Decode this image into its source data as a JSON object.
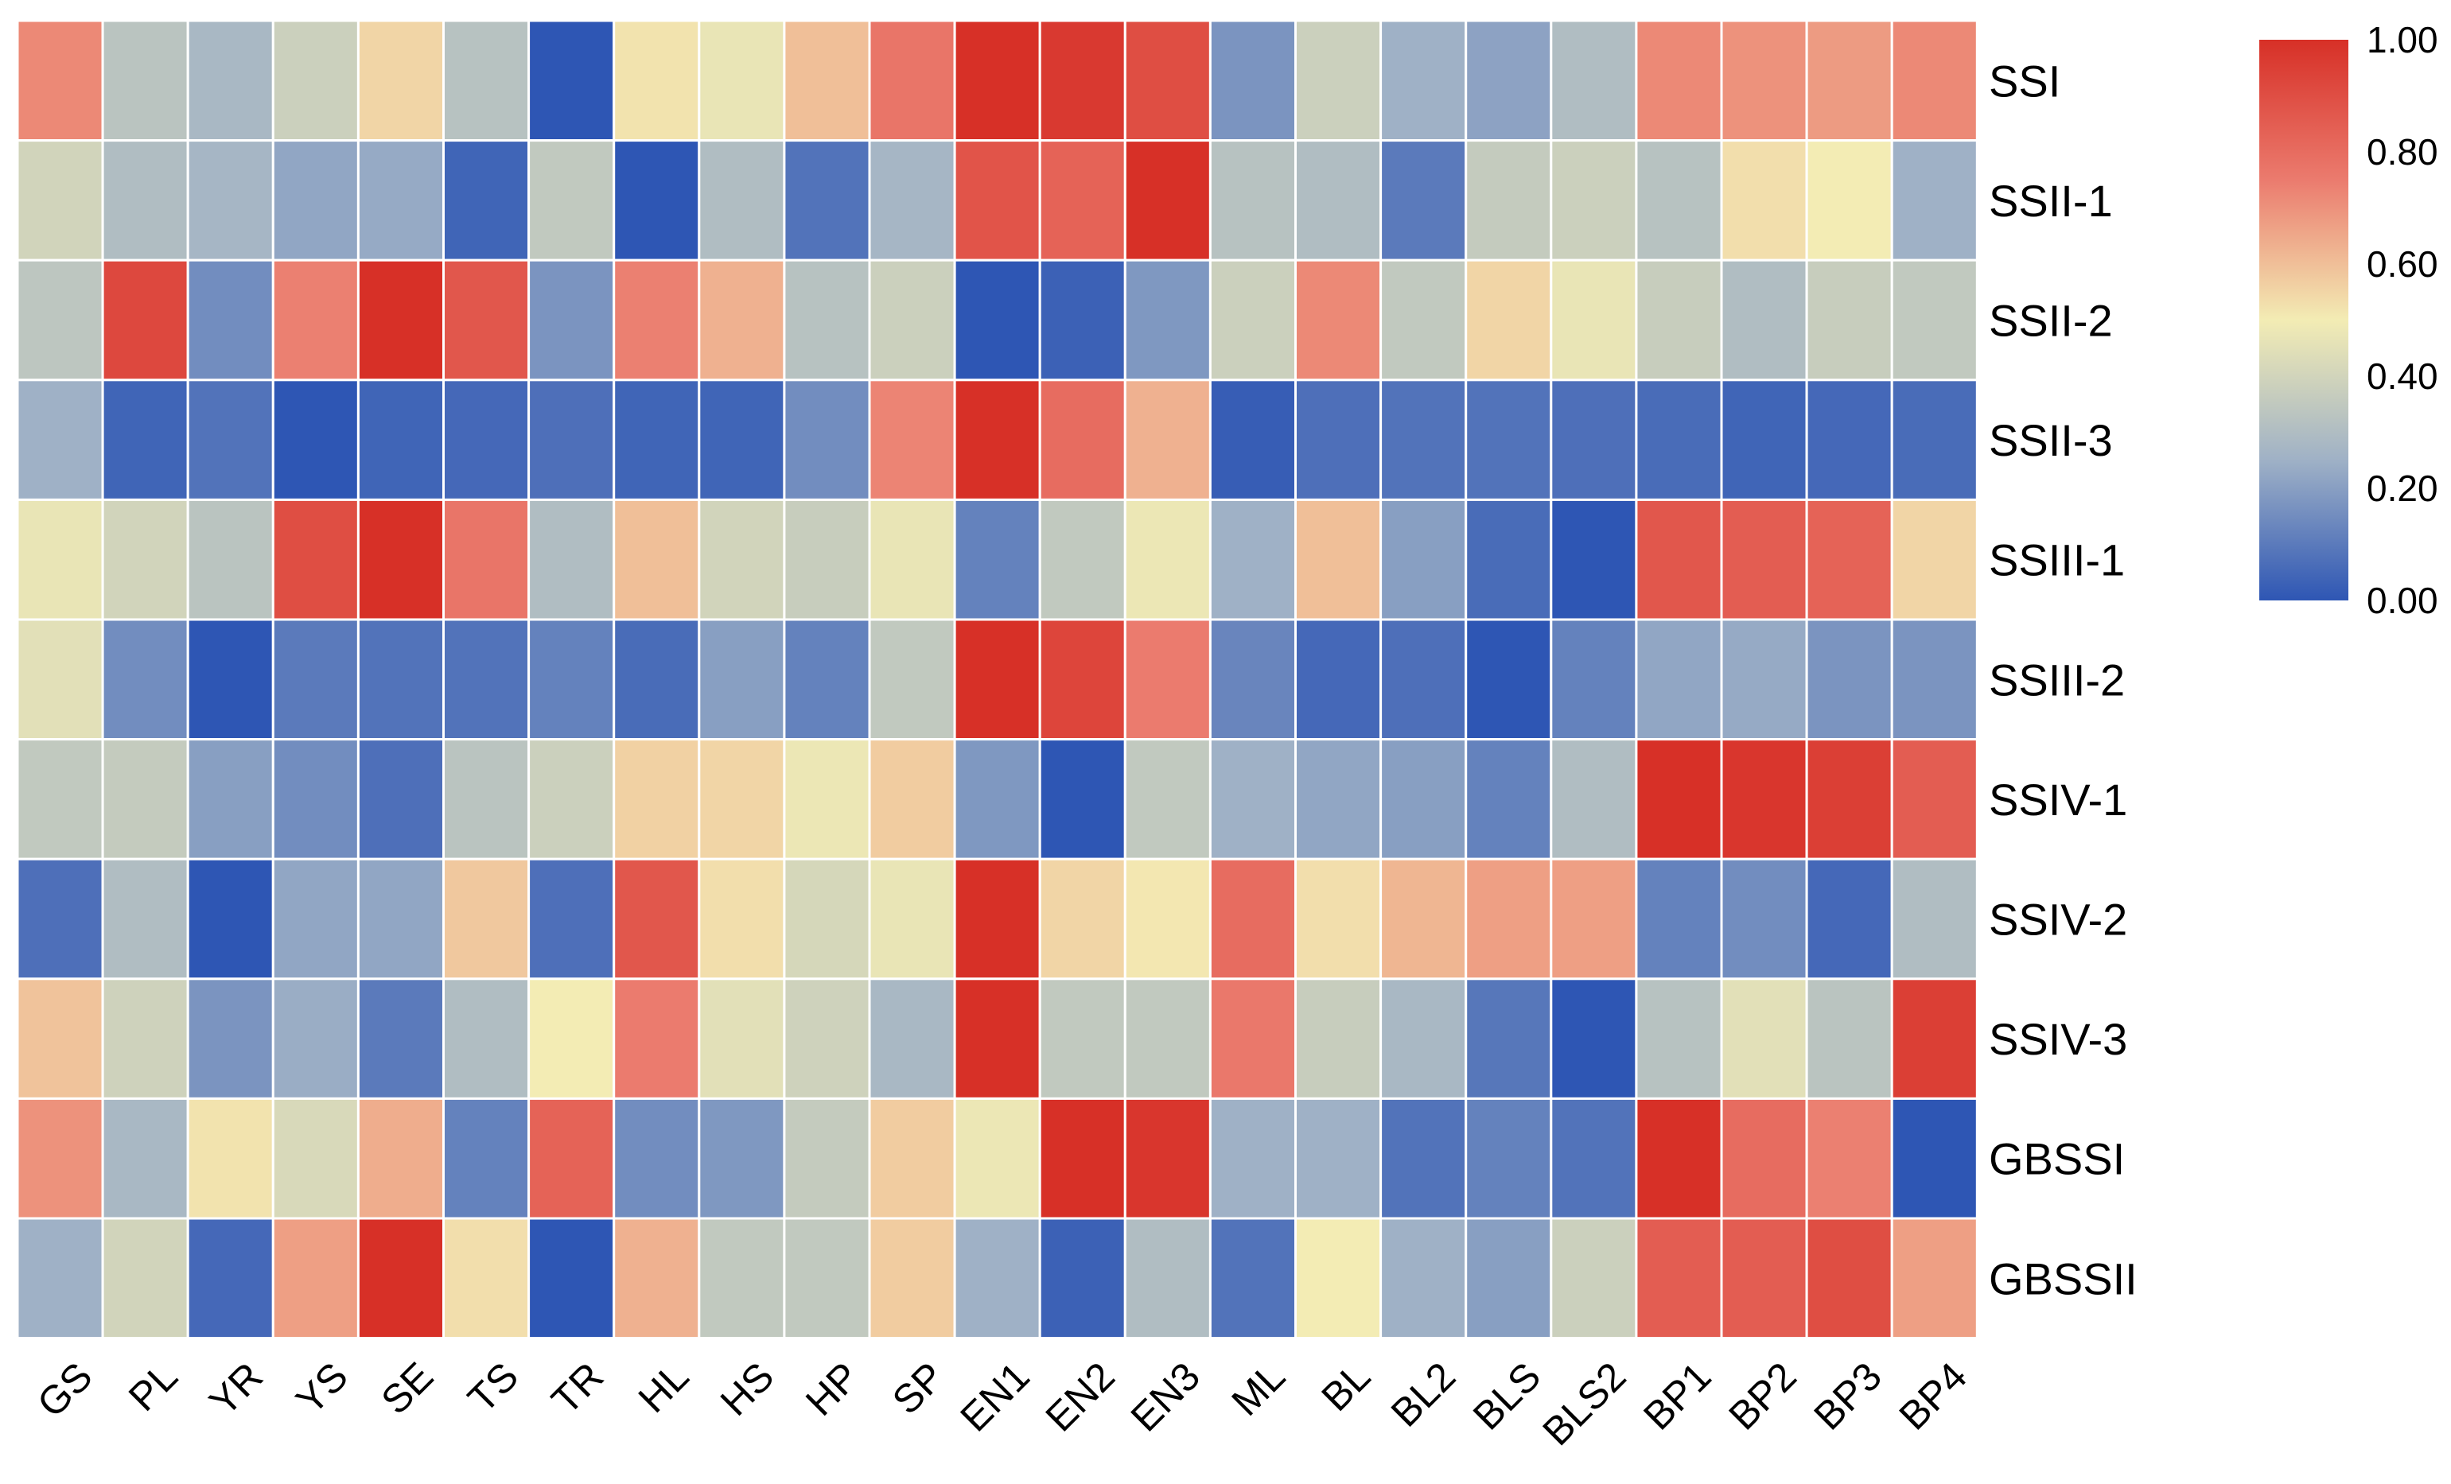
{
  "chart_data": {
    "type": "heatmap",
    "title": "",
    "xlabel": "",
    "ylabel": "",
    "columns": [
      "GS",
      "PL",
      "YR",
      "YS",
      "SE",
      "TS",
      "TR",
      "HL",
      "HS",
      "HP",
      "SP",
      "EN1",
      "EN2",
      "EN3",
      "ML",
      "BL",
      "BL2",
      "BLS",
      "BLS2",
      "BP1",
      "BP2",
      "BP3",
      "BP4"
    ],
    "rows": [
      "SSI",
      "SSII-1",
      "SSII-2",
      "SSII-3",
      "SSIII-1",
      "SSIII-2",
      "SSIV-1",
      "SSIV-2",
      "SSIV-3",
      "GBSSI",
      "GBSSII"
    ],
    "values": [
      [
        0.72,
        0.33,
        0.28,
        0.38,
        0.55,
        0.32,
        0.0,
        0.52,
        0.47,
        0.6,
        0.77,
        1.0,
        0.97,
        0.9,
        0.17,
        0.38,
        0.25,
        0.21,
        0.3,
        0.72,
        0.7,
        0.68,
        0.72
      ],
      [
        0.4,
        0.3,
        0.27,
        0.22,
        0.23,
        0.04,
        0.35,
        0.0,
        0.3,
        0.08,
        0.27,
        0.88,
        0.83,
        1.0,
        0.32,
        0.3,
        0.1,
        0.36,
        0.38,
        0.32,
        0.53,
        0.5,
        0.25
      ],
      [
        0.34,
        0.92,
        0.15,
        0.74,
        1.0,
        0.87,
        0.17,
        0.74,
        0.63,
        0.32,
        0.38,
        0.0,
        0.03,
        0.18,
        0.38,
        0.72,
        0.35,
        0.55,
        0.47,
        0.37,
        0.3,
        0.37,
        0.35
      ],
      [
        0.25,
        0.04,
        0.08,
        0.0,
        0.04,
        0.05,
        0.07,
        0.04,
        0.04,
        0.15,
        0.73,
        1.0,
        0.8,
        0.63,
        0.02,
        0.07,
        0.08,
        0.08,
        0.07,
        0.06,
        0.04,
        0.05,
        0.06
      ],
      [
        0.47,
        0.4,
        0.33,
        0.9,
        1.0,
        0.77,
        0.3,
        0.6,
        0.4,
        0.37,
        0.47,
        0.12,
        0.35,
        0.48,
        0.25,
        0.6,
        0.2,
        0.06,
        0.0,
        0.87,
        0.85,
        0.83,
        0.55
      ],
      [
        0.45,
        0.15,
        0.0,
        0.1,
        0.08,
        0.08,
        0.12,
        0.06,
        0.2,
        0.12,
        0.35,
        1.0,
        0.93,
        0.75,
        0.13,
        0.05,
        0.07,
        0.0,
        0.12,
        0.22,
        0.23,
        0.17,
        0.17
      ],
      [
        0.35,
        0.36,
        0.2,
        0.15,
        0.07,
        0.33,
        0.38,
        0.56,
        0.55,
        0.48,
        0.57,
        0.18,
        0.0,
        0.35,
        0.25,
        0.22,
        0.2,
        0.12,
        0.3,
        1.0,
        0.98,
        0.95,
        0.85
      ],
      [
        0.07,
        0.3,
        0.0,
        0.22,
        0.22,
        0.58,
        0.07,
        0.87,
        0.53,
        0.41,
        0.47,
        1.0,
        0.55,
        0.51,
        0.8,
        0.53,
        0.62,
        0.67,
        0.67,
        0.12,
        0.15,
        0.05,
        0.3
      ],
      [
        0.59,
        0.39,
        0.17,
        0.24,
        0.1,
        0.3,
        0.5,
        0.75,
        0.45,
        0.39,
        0.28,
        1.0,
        0.35,
        0.35,
        0.76,
        0.37,
        0.28,
        0.09,
        0.0,
        0.32,
        0.45,
        0.33,
        0.95
      ],
      [
        0.7,
        0.28,
        0.52,
        0.42,
        0.64,
        0.12,
        0.83,
        0.15,
        0.18,
        0.36,
        0.57,
        0.48,
        1.0,
        0.98,
        0.25,
        0.25,
        0.08,
        0.12,
        0.08,
        1.0,
        0.8,
        0.74,
        0.0
      ],
      [
        0.25,
        0.4,
        0.05,
        0.67,
        1.0,
        0.53,
        0.0,
        0.63,
        0.35,
        0.35,
        0.57,
        0.25,
        0.03,
        0.3,
        0.08,
        0.5,
        0.25,
        0.2,
        0.38,
        0.85,
        0.85,
        0.9,
        0.67
      ]
    ],
    "colorbar": {
      "min": 0.0,
      "max": 1.0,
      "ticks": [
        "0.00",
        "0.20",
        "0.40",
        "0.60",
        "0.80",
        "1.00"
      ],
      "colors": [
        "#2e56b4",
        "#9fb1c6",
        "#f3ecb4",
        "#eb7b6e",
        "#d73027"
      ]
    }
  }
}
